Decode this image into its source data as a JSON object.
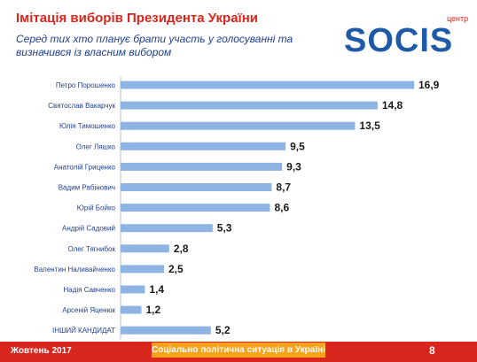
{
  "header": {
    "title": "Імітація виборів Президента України",
    "subtitle": "Серед тих хто планує брати участь у голосуванні та визначився із власним вибором"
  },
  "logo": {
    "text": "SOCIS",
    "small_text": "центр"
  },
  "footer": {
    "date": "Жовтень 2017",
    "center": "Соціально політична ситуація в Україні",
    "page": "8"
  },
  "colors": {
    "bar": "#8db4e2",
    "accent": "#d9261c",
    "orange": "#f6a21a",
    "logo_blue": "#1f5aa6"
  },
  "chart_data": {
    "type": "bar",
    "orientation": "horizontal",
    "categories": [
      "Петро Порошенко",
      "Святослав Вакарчук",
      "Юлія Тимошенко",
      "Олег Ляшко",
      "Анатолій Гриценко",
      "Вадим Рабінович",
      "Юрій Бойко",
      "Андрій Садовий",
      "Олег Тягнибок",
      "Валентин Наливайченко",
      "Надія Савченко",
      "Арсеній Яценюк",
      "ІНШИЙ КАНДИДАТ"
    ],
    "values": [
      16.9,
      14.8,
      13.5,
      9.5,
      9.3,
      8.7,
      8.6,
      5.3,
      2.8,
      2.5,
      1.4,
      1.2,
      5.2
    ],
    "value_labels": [
      "16,9",
      "14,8",
      "13,5",
      "9,5",
      "9,3",
      "8,7",
      "8,6",
      "5,3",
      "2,8",
      "2,5",
      "1,4",
      "1,2",
      "5,2"
    ],
    "xlim": [
      0,
      16.9
    ]
  }
}
